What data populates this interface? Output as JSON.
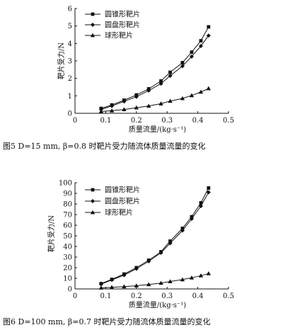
{
  "chart_data": [
    {
      "type": "line",
      "ylabel": "靶片受力/N",
      "xlabel": "质量流量/(kg·s⁻¹)",
      "xlim": [
        0,
        0.5
      ],
      "ylim": [
        0,
        6
      ],
      "xticks": [
        "0",
        "0.1",
        "0.2",
        "0.3",
        "0.4",
        "0.5"
      ],
      "yticks": [
        "0",
        "1",
        "2",
        "3",
        "4",
        "5",
        "6"
      ],
      "legend": "top-left",
      "caption": "图5  D=15 mm, β=0.8 时靶片受力随流体质量流量的变化",
      "series": [
        {
          "name": "圆锥形靶片",
          "marker": "square",
          "x": [
            0.085,
            0.12,
            0.16,
            0.2,
            0.24,
            0.28,
            0.31,
            0.35,
            0.38,
            0.41,
            0.435
          ],
          "y": [
            0.28,
            0.48,
            0.75,
            1.05,
            1.4,
            1.85,
            2.35,
            2.9,
            3.5,
            4.15,
            4.95
          ]
        },
        {
          "name": "圆盘形靶片",
          "marker": "diamond",
          "x": [
            0.085,
            0.12,
            0.16,
            0.2,
            0.24,
            0.28,
            0.31,
            0.35,
            0.38,
            0.41,
            0.435
          ],
          "y": [
            0.22,
            0.42,
            0.68,
            0.95,
            1.3,
            1.7,
            2.15,
            2.7,
            3.25,
            3.85,
            4.45
          ]
        },
        {
          "name": "球形靶片",
          "marker": "triangle",
          "x": [
            0.085,
            0.12,
            0.16,
            0.2,
            0.24,
            0.28,
            0.31,
            0.35,
            0.38,
            0.41,
            0.435
          ],
          "y": [
            0.1,
            0.15,
            0.22,
            0.32,
            0.42,
            0.55,
            0.7,
            0.85,
            1.02,
            1.22,
            1.42
          ]
        }
      ]
    },
    {
      "type": "line",
      "ylabel": "靶片受力/N",
      "xlabel": "质量流量/(kg·s⁻¹)",
      "xlim": [
        0,
        0.5
      ],
      "ylim": [
        0,
        100
      ],
      "xticks": [
        "0",
        "0.1",
        "0.2",
        "0.3",
        "0.4",
        "0.5"
      ],
      "yticks": [
        "0",
        "10",
        "20",
        "30",
        "40",
        "50",
        "60",
        "70",
        "80",
        "90",
        "100"
      ],
      "legend": "top-left",
      "caption": "图6  D=100 mm, β=0.7 时靶片受力随流体质量流量的变化",
      "series": [
        {
          "name": "圆锥形靶片",
          "marker": "square",
          "x": [
            0.085,
            0.12,
            0.16,
            0.2,
            0.24,
            0.28,
            0.31,
            0.35,
            0.38,
            0.41,
            0.435
          ],
          "y": [
            5,
            9,
            14,
            20,
            27,
            35,
            45,
            57,
            68,
            81,
            95
          ]
        },
        {
          "name": "圆盘形靶片",
          "marker": "diamond",
          "x": [
            0.085,
            0.12,
            0.16,
            0.2,
            0.24,
            0.28,
            0.31,
            0.35,
            0.38,
            0.41,
            0.435
          ],
          "y": [
            4.5,
            8.5,
            13,
            19,
            26,
            34,
            43,
            55,
            66,
            78,
            91
          ]
        },
        {
          "name": "球形靶片",
          "marker": "triangle",
          "x": [
            0.085,
            0.12,
            0.16,
            0.2,
            0.24,
            0.28,
            0.31,
            0.35,
            0.38,
            0.41,
            0.435
          ],
          "y": [
            1.0,
            1.5,
            2.2,
            3.0,
            4.2,
            5.5,
            7.0,
            8.8,
            10.5,
            12.5,
            14.5
          ]
        }
      ]
    }
  ]
}
